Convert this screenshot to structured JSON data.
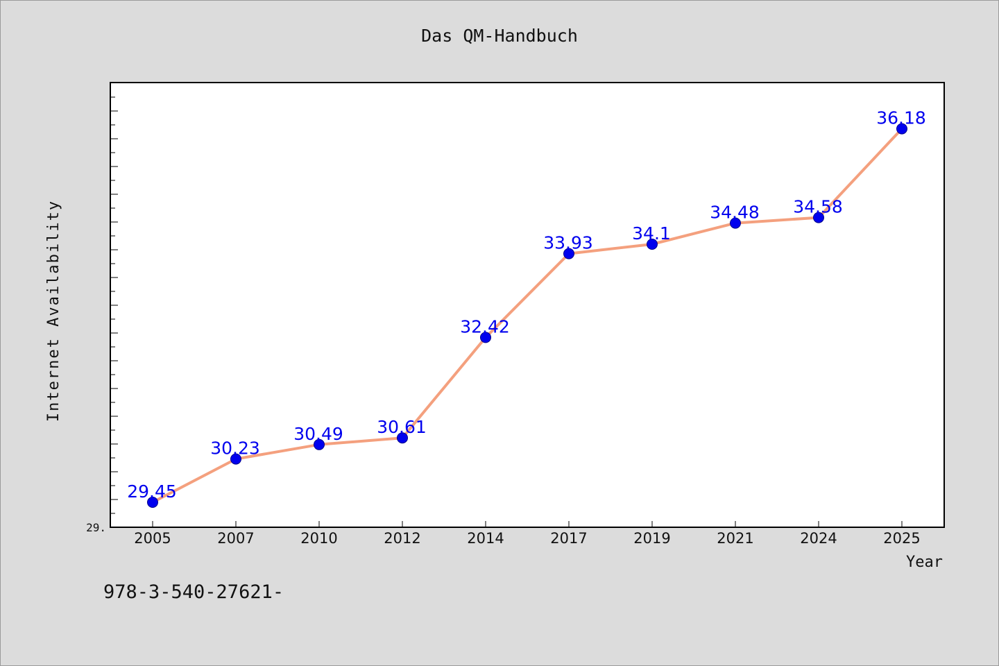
{
  "caption": "978-3-540-27621-",
  "colors": {
    "line": "#f4a07e",
    "marker": "#0000ee",
    "data_label": "#0000ee"
  },
  "chart_data": {
    "type": "line",
    "title": "Das QM-Handbuch",
    "xlabel": "Year",
    "ylabel": "Internet Availability",
    "categories": [
      "2005",
      "2007",
      "2010",
      "2012",
      "2014",
      "2017",
      "2019",
      "2021",
      "2024",
      "2025"
    ],
    "series": [
      {
        "values": [
          29.45,
          30.23,
          30.49,
          30.61,
          32.42,
          33.93,
          34.1,
          34.48,
          34.58,
          36.18
        ],
        "data_labels": [
          "29.45",
          "30.23",
          "30.49",
          "30.61",
          "32.42",
          "33.93",
          "34.1",
          "34.48",
          "34.58",
          "36.18"
        ]
      }
    ],
    "y_tick_labels": [
      "29."
    ],
    "ylim": [
      29.0,
      37.0
    ],
    "grid": false,
    "legend": "none"
  }
}
